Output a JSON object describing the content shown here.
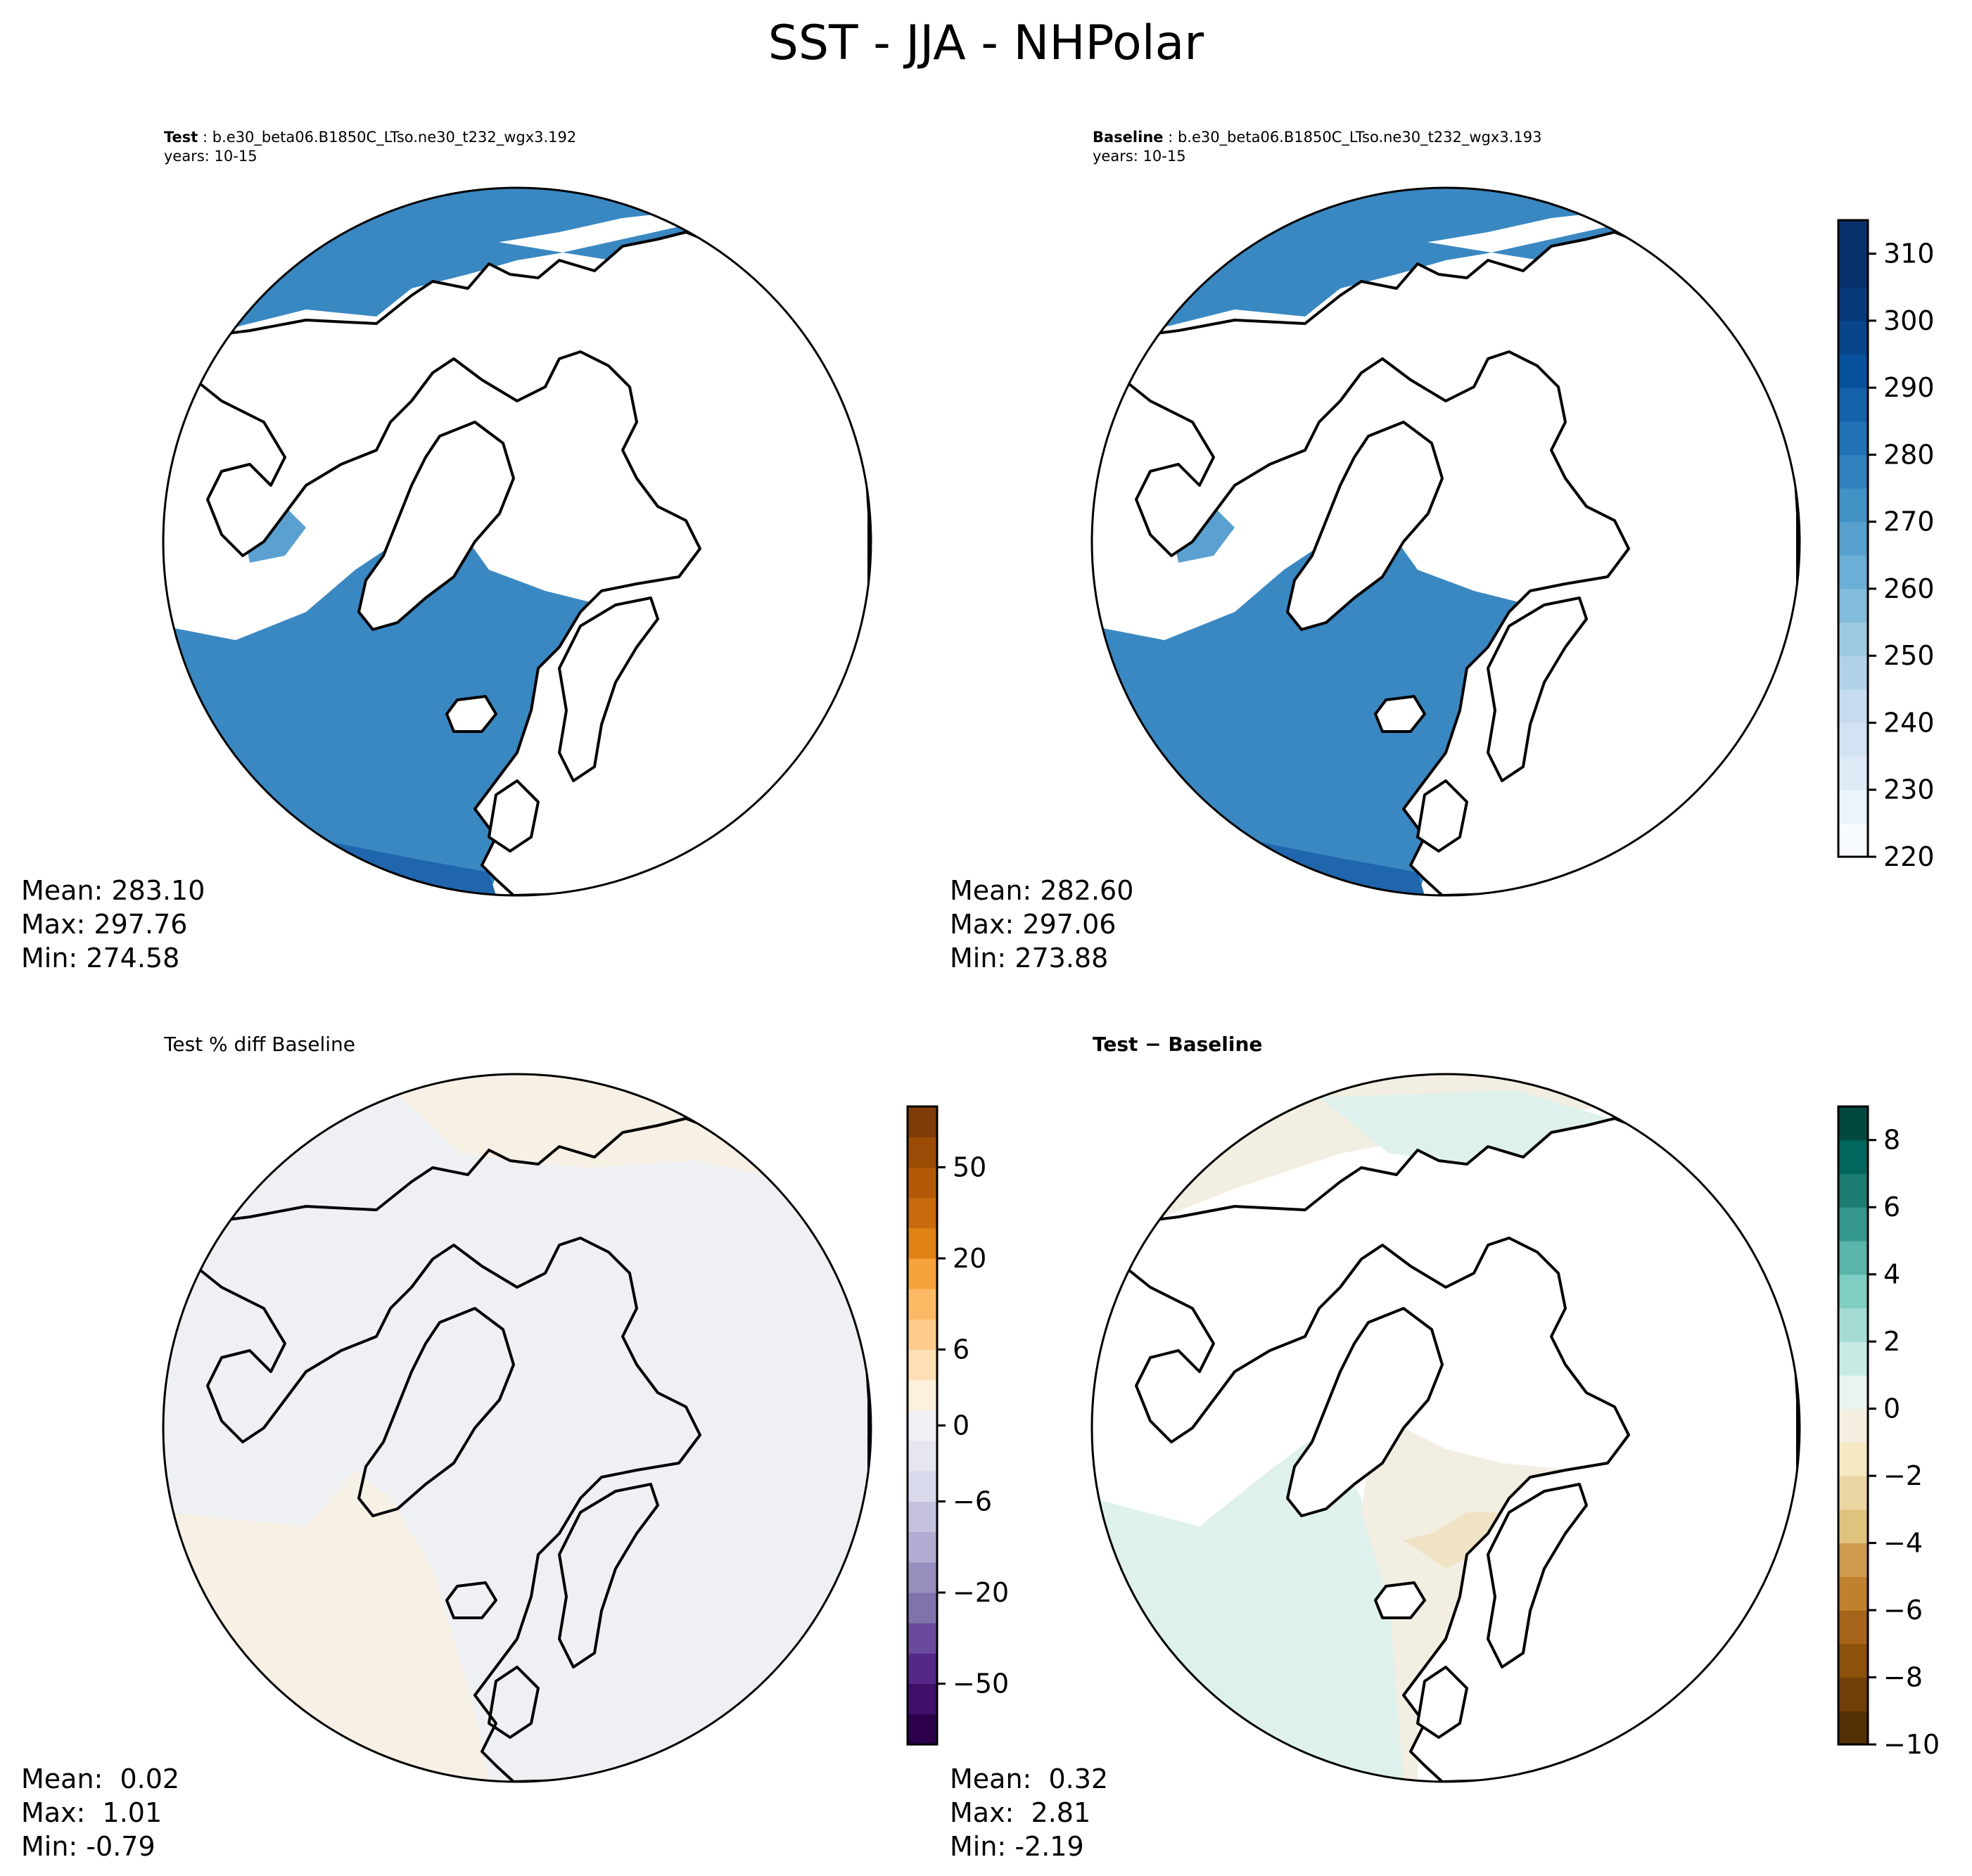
{
  "chart_data": [
    {
      "type": "heatmap",
      "title": "SST - JJA - NHPolar",
      "panel": "test",
      "label_bold": "Test",
      "case": "b.e30_beta06.B1850C_LTso.ne30_t232_wgx3.192",
      "years": "years: 10-15",
      "stats": {
        "mean": "283.10",
        "max": "297.76",
        "min": "274.58"
      },
      "colormap": "Blues",
      "colorbar_shared_with": "baseline"
    },
    {
      "type": "heatmap",
      "panel": "baseline",
      "label_bold": "Baseline",
      "case": "b.e30_beta06.B1850C_LTso.ne30_t232_wgx3.193",
      "years": "years: 10-15",
      "stats": {
        "mean": "282.60",
        "max": "297.06",
        "min": "273.88"
      },
      "colormap": "Blues",
      "colorbar": {
        "ticks": [
          "220",
          "230",
          "240",
          "250",
          "260",
          "270",
          "280",
          "290",
          "300",
          "310"
        ],
        "range": [
          220,
          315
        ],
        "colors": [
          "#f7fbff",
          "#ebf3fb",
          "#deebf7",
          "#d2e3f3",
          "#c6dbef",
          "#b2d2e8",
          "#9ecae1",
          "#84bcdb",
          "#6baed6",
          "#57a0ce",
          "#4292c6",
          "#3182bd",
          "#2171b5",
          "#1561a9",
          "#08519c",
          "#08458a",
          "#083978",
          "#08306b",
          "#08306b"
        ]
      }
    },
    {
      "type": "heatmap",
      "panel": "pct_diff",
      "label": "Test % diff Baseline",
      "stats": {
        "mean": " 0.02",
        "max": " 1.01",
        "min": "-0.79"
      },
      "colormap": "PuOr_r",
      "colorbar": {
        "ticks": [
          "−50",
          "−20",
          "−6",
          "0",
          "6",
          "20",
          "50"
        ],
        "colors": [
          "#2d004b",
          "#3f0f6a",
          "#542788",
          "#6a4a9b",
          "#8073ac",
          "#998fbf",
          "#b2abd2",
          "#c5c2df",
          "#d8daeb",
          "#e6e6f0",
          "#f2f0f7",
          "#fdf0dc",
          "#fee0b6",
          "#fdcb8b",
          "#fdb863",
          "#f7a33b",
          "#e08214",
          "#c86a0d",
          "#b35806",
          "#9a4b06",
          "#7f3b08"
        ]
      }
    },
    {
      "type": "heatmap",
      "panel": "diff",
      "label_bold": "Test − Baseline",
      "stats": {
        "mean": " 0.32",
        "max": " 2.81",
        "min": "-2.19"
      },
      "colormap": "BrBG",
      "colorbar": {
        "ticks": [
          "−10",
          "−8",
          "−6",
          "−4",
          "−2",
          "0",
          "2",
          "4",
          "6",
          "8"
        ],
        "range": [
          -10,
          9
        ],
        "colors": [
          "#543005",
          "#6f3e09",
          "#8c510a",
          "#a6651a",
          "#bf812d",
          "#cf9b4f",
          "#dfc27d",
          "#ebd5a2",
          "#f6e8c3",
          "#f5efe2",
          "#eaf3f0",
          "#c7eae5",
          "#a4dbd3",
          "#80cdc1",
          "#5ab4a9",
          "#35978f",
          "#1e7d73",
          "#01665e",
          "#01493f"
        ]
      }
    }
  ],
  "colors": {
    "ocean_test": "#3a88c2",
    "ocean_base": "#3a88c2",
    "ocean_warm": "#1f66ad",
    "ocean_light": "#5aa0d0",
    "pct_background": "#eef0f3",
    "pct_warm": "#f7f0e4",
    "diff_green": "#dff1ec",
    "diff_tan": "#f3eee2",
    "diff_orange": "#f0e2c5"
  }
}
